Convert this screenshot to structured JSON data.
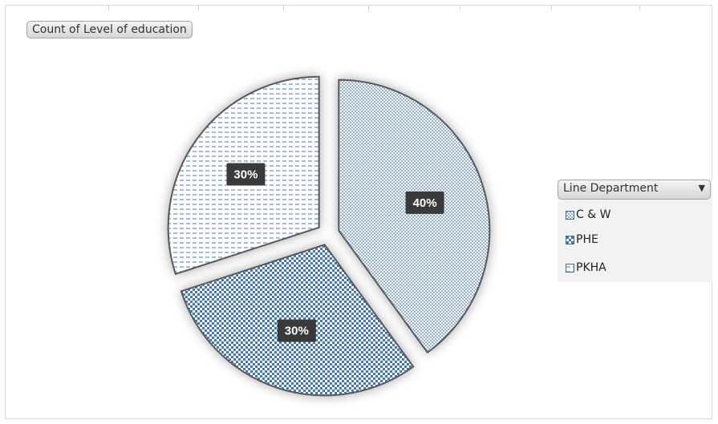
{
  "field_button_title": "Count of Level of education",
  "legend": {
    "header": "Line Department",
    "dropdown_glyph": "▼",
    "items": [
      "C & W",
      "PHE",
      "PKHA"
    ]
  },
  "colors": {
    "accent": "#4a86c8",
    "pattern_ink": "#3f77b7",
    "label_bg": "#3a3a3a",
    "label_text": "#ffffff",
    "slice_border": "#595959"
  },
  "chart_data": {
    "type": "pie",
    "exploded": true,
    "legend_position": "right",
    "categories": [
      "C & W",
      "PHE",
      "PKHA"
    ],
    "values": [
      40,
      30,
      30
    ],
    "labels": [
      "40%",
      "30%",
      "30%"
    ]
  }
}
